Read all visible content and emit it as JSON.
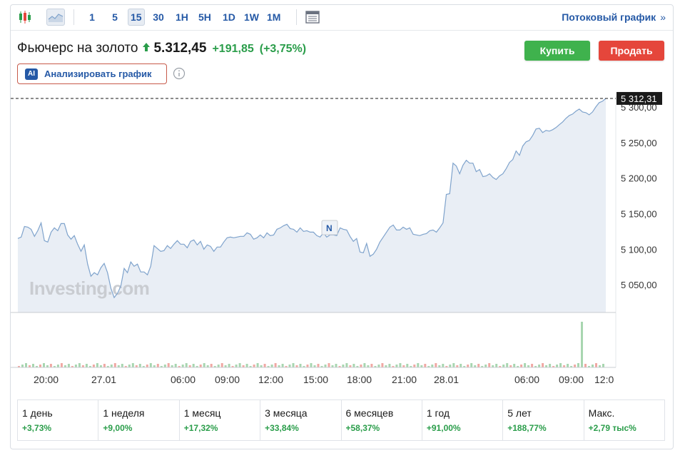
{
  "toolbar": {
    "icons": [
      "candlestick-chart-icon",
      "area-chart-icon",
      "layout-icon"
    ],
    "intervals": [
      "1",
      "5",
      "15",
      "30",
      "1H",
      "5H",
      "1D",
      "1W",
      "1M"
    ],
    "active_interval": "15",
    "stream_link": "Потоковый график",
    "stream_chevron": "»"
  },
  "instrument": {
    "name": "Фьючерс на золото",
    "price": "5.312,45",
    "change": "+191,85",
    "change_pct": "(+3,75%)",
    "direction_icon": "arrow-up-icon"
  },
  "actions": {
    "buy": "Купить",
    "sell": "Продать"
  },
  "ai": {
    "badge": "AI",
    "label": "Анализировать график"
  },
  "colors": {
    "accent": "#2559a6",
    "positive": "#2a9d4a",
    "buy": "#3fb24d",
    "sell": "#e5463b",
    "line": "#7fa3cc",
    "area": "#e9eef5"
  },
  "chart_data": {
    "type": "area",
    "watermark": "Investing.com",
    "last_price_label": "5 312,31",
    "marker_label": "N",
    "y_ticks": [
      "5 300,00",
      "5 250,00",
      "5 200,00",
      "5 150,00",
      "5 100,00",
      "5 050,00"
    ],
    "y_tick_values": [
      5300,
      5250,
      5200,
      5150,
      5100,
      5050
    ],
    "ylim": [
      5011,
      5325
    ],
    "x_ticks": [
      "20:00",
      "27.01",
      "06:00",
      "09:00",
      "12:00",
      "15:00",
      "18:00",
      "21:00",
      "28.01",
      "06:00",
      "09:00",
      "12:0"
    ],
    "series": [
      {
        "values": [
          5115,
          5117,
          5132,
          5131,
          5128,
          5118,
          5126,
          5137,
          5112,
          5110,
          5124,
          5130,
          5126,
          5136,
          5136,
          5120,
          5114,
          5119,
          5107,
          5097,
          5106,
          5079,
          5062,
          5067,
          5064,
          5074,
          5080,
          5067,
          5045,
          5032,
          5038,
          5048,
          5073,
          5067,
          5082,
          5076,
          5079,
          5068,
          5068,
          5064,
          5076,
          5105,
          5101,
          5097,
          5098,
          5105,
          5101,
          5107,
          5112,
          5107,
          5107,
          5102,
          5111,
          5113,
          5106,
          5111,
          5100,
          5106,
          5104,
          5097,
          5103,
          5103,
          5110,
          5116,
          5117,
          5116,
          5117,
          5118,
          5118,
          5123,
          5121,
          5114,
          5116,
          5120,
          5116,
          5123,
          5119,
          5120,
          5128,
          5130,
          5133,
          5135,
          5129,
          5128,
          5124,
          5130,
          5125,
          5126,
          5124,
          5124,
          5119,
          5117,
          5123,
          5117,
          5120,
          5120,
          5119,
          5130,
          5128,
          5127,
          5118,
          5111,
          5115,
          5096,
          5095,
          5108,
          5090,
          5093,
          5100,
          5110,
          5117,
          5124,
          5131,
          5134,
          5127,
          5127,
          5131,
          5128,
          5130,
          5121,
          5120,
          5119,
          5121,
          5122,
          5126,
          5127,
          5124,
          5130,
          5137,
          5177,
          5178,
          5221,
          5217,
          5206,
          5218,
          5225,
          5221,
          5221,
          5209,
          5212,
          5202,
          5203,
          5206,
          5201,
          5198,
          5203,
          5206,
          5213,
          5222,
          5226,
          5238,
          5232,
          5245,
          5251,
          5253,
          5260,
          5269,
          5270,
          5264,
          5267,
          5266,
          5268,
          5271,
          5275,
          5279,
          5284,
          5288,
          5290,
          5294,
          5297,
          5293,
          5292,
          5289,
          5293,
          5300,
          5306,
          5308,
          5312
        ]
      }
    ],
    "volume": {
      "type": "bar",
      "spike_index": 158,
      "spike_relative_height": 1.0
    },
    "grid": false
  },
  "periods": [
    {
      "label": "1 день",
      "value": "+3,73%"
    },
    {
      "label": "1 неделя",
      "value": "+9,00%"
    },
    {
      "label": "1 месяц",
      "value": "+17,32%"
    },
    {
      "label": "3 месяца",
      "value": "+33,84%"
    },
    {
      "label": "6 месяцев",
      "value": "+58,37%"
    },
    {
      "label": "1 год",
      "value": "+91,00%"
    },
    {
      "label": "5 лет",
      "value": "+188,77%"
    },
    {
      "label": "Макс.",
      "value": "+2,79 тыс%"
    }
  ]
}
